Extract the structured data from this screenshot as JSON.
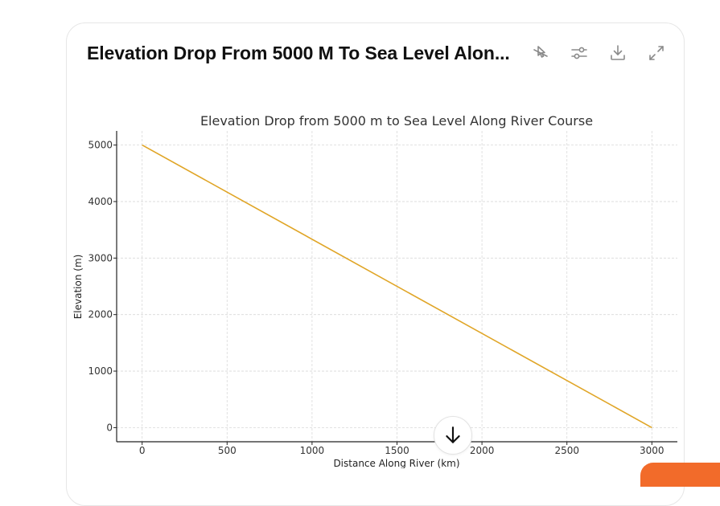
{
  "card": {
    "title": "Elevation Drop From 5000 M To Sea Level Alon...",
    "toolbar": [
      {
        "name": "hide-interactivity",
        "icon": "cursor-off-icon"
      },
      {
        "name": "chart-settings",
        "icon": "sliders-icon"
      },
      {
        "name": "download",
        "icon": "download-icon"
      },
      {
        "name": "expand",
        "icon": "expand-icon"
      }
    ]
  },
  "scroll_down": {
    "icon": "arrow-down-icon"
  },
  "colors": {
    "line": "#e0a526",
    "grid": "#d9d9d9",
    "axis": "#222222",
    "text": "#333333"
  },
  "chart_data": {
    "type": "line",
    "title": "Elevation Drop from 5000 m to Sea Level Along River Course",
    "xlabel": "Distance Along River (km)",
    "ylabel": "Elevation (m)",
    "xlim": [
      -150,
      3150
    ],
    "ylim": [
      -250,
      5250
    ],
    "xticks": [
      0,
      500,
      1000,
      1500,
      2000,
      2500,
      3000
    ],
    "xtick_labels": [
      "0",
      "500",
      "1000",
      "1500",
      "2000",
      "2500",
      "3000"
    ],
    "yticks": [
      0,
      1000,
      2000,
      3000,
      4000,
      5000
    ],
    "ytick_labels": [
      "0",
      "1000",
      "2000",
      "3000",
      "4000",
      "5000"
    ],
    "grid": true,
    "legend": "none",
    "series": [
      {
        "name": "Elevation",
        "x": [
          0,
          3000
        ],
        "y": [
          5000,
          0
        ]
      }
    ]
  }
}
